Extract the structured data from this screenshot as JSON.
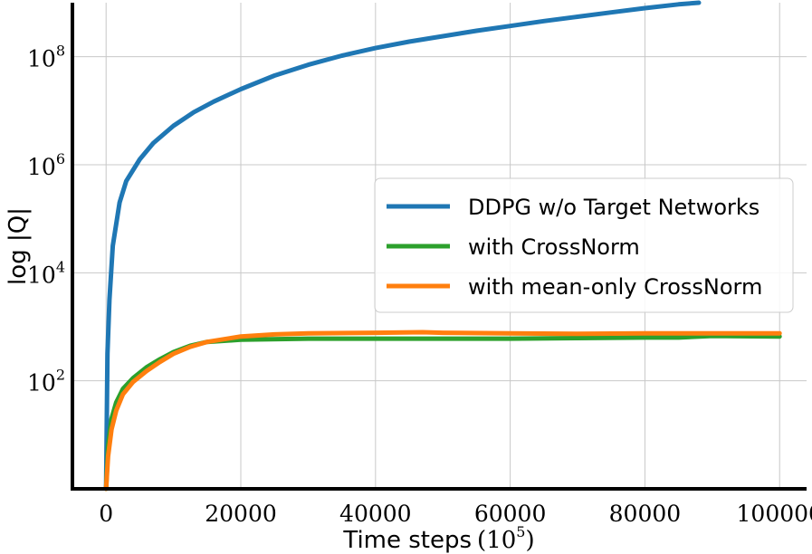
{
  "chart_data": {
    "type": "line",
    "title": "",
    "xlabel": "Time steps",
    "xlabel_unit_base": "10",
    "xlabel_unit_exp": "5",
    "ylabel": "log |Q|",
    "x_ticks": [
      "0",
      "20000",
      "40000",
      "60000",
      "80000",
      "100000"
    ],
    "y_tick_base": "10",
    "y_tick_exponents": [
      "2",
      "4",
      "6",
      "8"
    ],
    "xlim": [
      -5000,
      104000
    ],
    "y_scale": "log",
    "ylim_log10": [
      0,
      9
    ],
    "grid": true,
    "legend_position": "center-right",
    "series": [
      {
        "name": "DDPG w/o Target Networks",
        "color": "#1f77b4",
        "x": [
          0,
          200,
          500,
          1000,
          2000,
          3000,
          5000,
          7000,
          10000,
          13000,
          16000,
          20000,
          25000,
          30000,
          35000,
          40000,
          45000,
          50000,
          55000,
          60000,
          65000,
          70000,
          75000,
          80000,
          85000,
          88000
        ],
        "log10_y": [
          0,
          2.5,
          3.5,
          4.5,
          5.3,
          5.7,
          6.1,
          6.4,
          6.72,
          6.97,
          7.17,
          7.4,
          7.65,
          7.85,
          8.02,
          8.16,
          8.28,
          8.38,
          8.48,
          8.57,
          8.66,
          8.74,
          8.82,
          8.9,
          8.97,
          9.0
        ]
      },
      {
        "name": "with CrossNorm",
        "color": "#2ca02c",
        "x": [
          0,
          300,
          800,
          1500,
          2500,
          4000,
          6000,
          8000,
          10000,
          12500,
          15000,
          20000,
          30000,
          40000,
          50000,
          60000,
          70000,
          80000,
          85000,
          90000,
          100000
        ],
        "log10_y": [
          0,
          0.8,
          1.3,
          1.6,
          1.85,
          2.05,
          2.25,
          2.4,
          2.53,
          2.65,
          2.72,
          2.76,
          2.78,
          2.78,
          2.78,
          2.78,
          2.79,
          2.8,
          2.8,
          2.83,
          2.82
        ]
      },
      {
        "name": "with mean-only CrossNorm",
        "color": "#ff7f0e",
        "x": [
          0,
          300,
          800,
          1500,
          2500,
          4000,
          6000,
          8000,
          10000,
          12500,
          15000,
          20000,
          25000,
          30000,
          40000,
          47000,
          50000,
          60000,
          70000,
          80000,
          90000,
          100000
        ],
        "log10_y": [
          0,
          0.6,
          1.1,
          1.45,
          1.75,
          1.98,
          2.18,
          2.35,
          2.5,
          2.63,
          2.72,
          2.82,
          2.86,
          2.88,
          2.89,
          2.9,
          2.89,
          2.88,
          2.87,
          2.88,
          2.88,
          2.88
        ]
      }
    ]
  }
}
